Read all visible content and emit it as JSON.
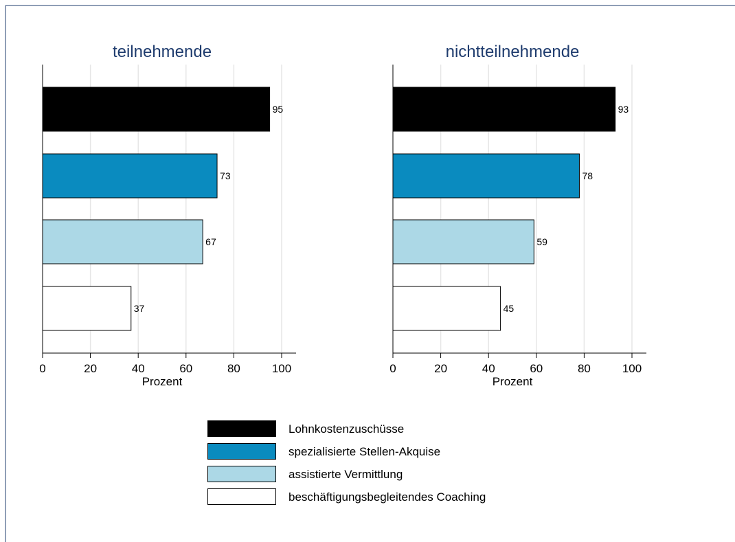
{
  "chart_data": [
    {
      "type": "bar",
      "orientation": "horizontal",
      "title": "teilnehmende",
      "xlabel": "Prozent",
      "xlim": [
        0,
        100
      ],
      "xticks": [
        "0",
        "20",
        "40",
        "60",
        "80",
        "100"
      ],
      "grid": true,
      "categories": [
        "Lohnkostenzuschüsse",
        "spezialisierte Stellen-Akquise",
        "assistierte Vermittlung",
        "beschäftigungsbegleitendes Coaching"
      ],
      "values": [
        95,
        73,
        67,
        37
      ],
      "data_labels": [
        "95",
        "73",
        "67",
        "37"
      ],
      "colors": [
        "#000000",
        "#0a8bbf",
        "#acd8e6",
        "#ffffff"
      ]
    },
    {
      "type": "bar",
      "orientation": "horizontal",
      "title": "nichtteilnehmende",
      "xlabel": "Prozent",
      "xlim": [
        0,
        100
      ],
      "xticks": [
        "0",
        "20",
        "40",
        "60",
        "80",
        "100"
      ],
      "grid": true,
      "categories": [
        "Lohnkostenzuschüsse",
        "spezialisierte Stellen-Akquise",
        "assistierte Vermittlung",
        "beschäftigungsbegleitendes Coaching"
      ],
      "values": [
        93,
        78,
        59,
        45
      ],
      "data_labels": [
        "93",
        "78",
        "59",
        "45"
      ],
      "colors": [
        "#000000",
        "#0a8bbf",
        "#acd8e6",
        "#ffffff"
      ]
    }
  ],
  "legend": {
    "placement": "bottom-center",
    "items": [
      {
        "label": "Lohnkostenzuschüsse",
        "color": "#000000"
      },
      {
        "label": "spezialisierte Stellen-Akquise",
        "color": "#0a8bbf"
      },
      {
        "label": "assistierte Vermittlung",
        "color": "#acd8e6"
      },
      {
        "label": "beschäftigungsbegleitendes Coaching",
        "color": "#ffffff"
      }
    ]
  },
  "colors": {
    "title": "#1f3c6e",
    "frame": "#1f3c6e",
    "grid": "#e6e6e6"
  }
}
